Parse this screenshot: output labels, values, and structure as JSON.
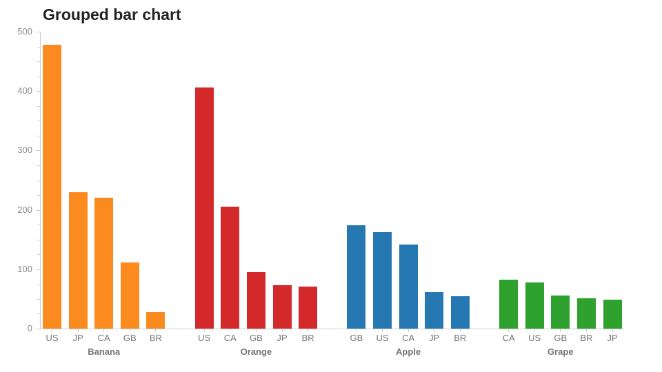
{
  "chart_data": {
    "type": "bar",
    "title": "Grouped bar chart",
    "xlabel": "",
    "ylabel": "",
    "ylim": [
      0,
      500
    ],
    "ytick_step": 100,
    "minor_tick_step": 25,
    "yticks": [
      0,
      100,
      200,
      300,
      400,
      500
    ],
    "grid": false,
    "legend_position": "none",
    "groups": [
      {
        "label": "Banana",
        "color": "#FB8B1E",
        "bars": [
          {
            "label": "US",
            "value": 478
          },
          {
            "label": "JP",
            "value": 230
          },
          {
            "label": "CA",
            "value": 220
          },
          {
            "label": "GB",
            "value": 111
          },
          {
            "label": "BR",
            "value": 28
          }
        ]
      },
      {
        "label": "Orange",
        "color": "#D3292A",
        "bars": [
          {
            "label": "US",
            "value": 406
          },
          {
            "label": "CA",
            "value": 205
          },
          {
            "label": "GB",
            "value": 95
          },
          {
            "label": "JP",
            "value": 73
          },
          {
            "label": "BR",
            "value": 71
          }
        ]
      },
      {
        "label": "Apple",
        "color": "#2578B1",
        "bars": [
          {
            "label": "GB",
            "value": 174
          },
          {
            "label": "US",
            "value": 162
          },
          {
            "label": "CA",
            "value": 141
          },
          {
            "label": "JP",
            "value": 62
          },
          {
            "label": "BR",
            "value": 54
          }
        ]
      },
      {
        "label": "Grape",
        "color": "#2EA12E",
        "bars": [
          {
            "label": "CA",
            "value": 82
          },
          {
            "label": "US",
            "value": 78
          },
          {
            "label": "GB",
            "value": 56
          },
          {
            "label": "BR",
            "value": 51
          },
          {
            "label": "JP",
            "value": 49
          }
        ]
      }
    ]
  },
  "theme": {
    "background": "#FFFFFF",
    "title_color": "#222222",
    "axis_color": "#CCCCCC",
    "tick_label_color": "#8C8C8C",
    "bar_label_color": "#757575",
    "group_label_color": "#757575"
  }
}
